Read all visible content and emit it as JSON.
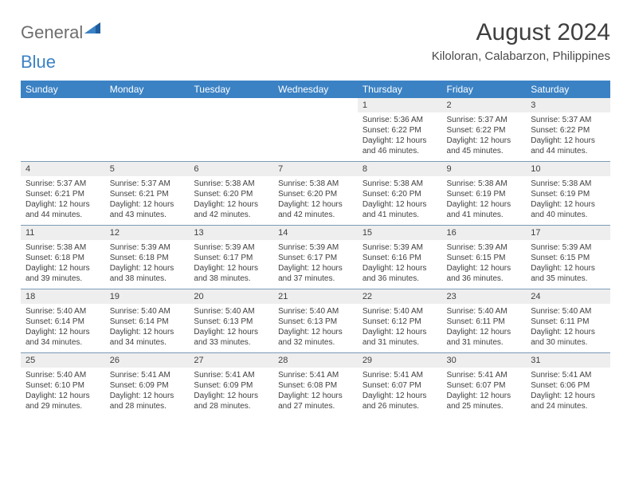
{
  "brand": {
    "part1": "General",
    "part2": "Blue"
  },
  "title": "August 2024",
  "location": "Kiloloran, Calabarzon, Philippines",
  "dow": [
    "Sunday",
    "Monday",
    "Tuesday",
    "Wednesday",
    "Thursday",
    "Friday",
    "Saturday"
  ],
  "colors": {
    "header_bg": "#3b82c4",
    "header_fg": "#ffffff",
    "band_bg": "#eeeeee",
    "band_border": "#7b9bb7",
    "text": "#3f3f3f",
    "logo_gray": "#6e6e6e",
    "logo_blue": "#3b82c4",
    "page_bg": "#ffffff"
  },
  "typography": {
    "title_fontsize": 30,
    "location_fontsize": 15,
    "dow_fontsize": 12,
    "daynum_fontsize": 11,
    "body_fontsize": 10
  },
  "labels": {
    "sunrise": "Sunrise:",
    "sunset": "Sunset:",
    "daylight": "Daylight:"
  },
  "weeks": [
    [
      null,
      null,
      null,
      null,
      {
        "n": "1",
        "sr": "5:36 AM",
        "ss": "6:22 PM",
        "dl": "12 hours and 46 minutes."
      },
      {
        "n": "2",
        "sr": "5:37 AM",
        "ss": "6:22 PM",
        "dl": "12 hours and 45 minutes."
      },
      {
        "n": "3",
        "sr": "5:37 AM",
        "ss": "6:22 PM",
        "dl": "12 hours and 44 minutes."
      }
    ],
    [
      {
        "n": "4",
        "sr": "5:37 AM",
        "ss": "6:21 PM",
        "dl": "12 hours and 44 minutes."
      },
      {
        "n": "5",
        "sr": "5:37 AM",
        "ss": "6:21 PM",
        "dl": "12 hours and 43 minutes."
      },
      {
        "n": "6",
        "sr": "5:38 AM",
        "ss": "6:20 PM",
        "dl": "12 hours and 42 minutes."
      },
      {
        "n": "7",
        "sr": "5:38 AM",
        "ss": "6:20 PM",
        "dl": "12 hours and 42 minutes."
      },
      {
        "n": "8",
        "sr": "5:38 AM",
        "ss": "6:20 PM",
        "dl": "12 hours and 41 minutes."
      },
      {
        "n": "9",
        "sr": "5:38 AM",
        "ss": "6:19 PM",
        "dl": "12 hours and 41 minutes."
      },
      {
        "n": "10",
        "sr": "5:38 AM",
        "ss": "6:19 PM",
        "dl": "12 hours and 40 minutes."
      }
    ],
    [
      {
        "n": "11",
        "sr": "5:38 AM",
        "ss": "6:18 PM",
        "dl": "12 hours and 39 minutes."
      },
      {
        "n": "12",
        "sr": "5:39 AM",
        "ss": "6:18 PM",
        "dl": "12 hours and 38 minutes."
      },
      {
        "n": "13",
        "sr": "5:39 AM",
        "ss": "6:17 PM",
        "dl": "12 hours and 38 minutes."
      },
      {
        "n": "14",
        "sr": "5:39 AM",
        "ss": "6:17 PM",
        "dl": "12 hours and 37 minutes."
      },
      {
        "n": "15",
        "sr": "5:39 AM",
        "ss": "6:16 PM",
        "dl": "12 hours and 36 minutes."
      },
      {
        "n": "16",
        "sr": "5:39 AM",
        "ss": "6:15 PM",
        "dl": "12 hours and 36 minutes."
      },
      {
        "n": "17",
        "sr": "5:39 AM",
        "ss": "6:15 PM",
        "dl": "12 hours and 35 minutes."
      }
    ],
    [
      {
        "n": "18",
        "sr": "5:40 AM",
        "ss": "6:14 PM",
        "dl": "12 hours and 34 minutes."
      },
      {
        "n": "19",
        "sr": "5:40 AM",
        "ss": "6:14 PM",
        "dl": "12 hours and 34 minutes."
      },
      {
        "n": "20",
        "sr": "5:40 AM",
        "ss": "6:13 PM",
        "dl": "12 hours and 33 minutes."
      },
      {
        "n": "21",
        "sr": "5:40 AM",
        "ss": "6:13 PM",
        "dl": "12 hours and 32 minutes."
      },
      {
        "n": "22",
        "sr": "5:40 AM",
        "ss": "6:12 PM",
        "dl": "12 hours and 31 minutes."
      },
      {
        "n": "23",
        "sr": "5:40 AM",
        "ss": "6:11 PM",
        "dl": "12 hours and 31 minutes."
      },
      {
        "n": "24",
        "sr": "5:40 AM",
        "ss": "6:11 PM",
        "dl": "12 hours and 30 minutes."
      }
    ],
    [
      {
        "n": "25",
        "sr": "5:40 AM",
        "ss": "6:10 PM",
        "dl": "12 hours and 29 minutes."
      },
      {
        "n": "26",
        "sr": "5:41 AM",
        "ss": "6:09 PM",
        "dl": "12 hours and 28 minutes."
      },
      {
        "n": "27",
        "sr": "5:41 AM",
        "ss": "6:09 PM",
        "dl": "12 hours and 28 minutes."
      },
      {
        "n": "28",
        "sr": "5:41 AM",
        "ss": "6:08 PM",
        "dl": "12 hours and 27 minutes."
      },
      {
        "n": "29",
        "sr": "5:41 AM",
        "ss": "6:07 PM",
        "dl": "12 hours and 26 minutes."
      },
      {
        "n": "30",
        "sr": "5:41 AM",
        "ss": "6:07 PM",
        "dl": "12 hours and 25 minutes."
      },
      {
        "n": "31",
        "sr": "5:41 AM",
        "ss": "6:06 PM",
        "dl": "12 hours and 24 minutes."
      }
    ]
  ]
}
